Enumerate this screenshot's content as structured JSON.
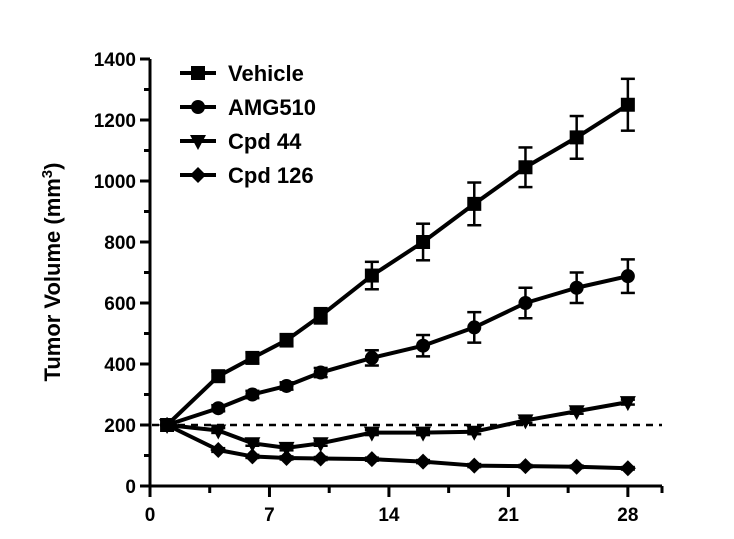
{
  "chart_data": {
    "type": "line",
    "title": "",
    "xlabel": "",
    "ylabel": "Tumor Volume (mm",
    "ylabel_superscript": "3",
    "ylabel_close": ")",
    "xlim": [
      0,
      30
    ],
    "ylim": [
      0,
      1400
    ],
    "xticks": [
      "0",
      "7",
      "14",
      "21",
      "28"
    ],
    "yticks": [
      "0",
      "200",
      "400",
      "600",
      "800",
      "1000",
      "1200",
      "1400"
    ],
    "reference_line": {
      "y": 200,
      "style": "dashed"
    },
    "legend_position": "top-left",
    "grid": false,
    "series": [
      {
        "name": "Vehicle",
        "marker": "square",
        "x": [
          1,
          4,
          6,
          8,
          10,
          13,
          16,
          19,
          22,
          25,
          28
        ],
        "values": [
          200,
          360,
          420,
          478,
          558,
          690,
          800,
          925,
          1045,
          1143,
          1250
        ],
        "errors": [
          0,
          15,
          18,
          20,
          25,
          45,
          60,
          70,
          65,
          70,
          85
        ]
      },
      {
        "name": "AMG510",
        "marker": "circle",
        "x": [
          1,
          4,
          6,
          8,
          10,
          13,
          16,
          19,
          22,
          25,
          28
        ],
        "values": [
          200,
          255,
          300,
          328,
          372,
          420,
          460,
          520,
          600,
          650,
          688
        ],
        "errors": [
          0,
          10,
          12,
          12,
          15,
          25,
          35,
          50,
          50,
          50,
          55
        ]
      },
      {
        "name": "Cpd 44",
        "marker": "triangle-down",
        "x": [
          1,
          4,
          6,
          8,
          10,
          13,
          16,
          19,
          22,
          25,
          28
        ],
        "values": [
          200,
          182,
          140,
          125,
          140,
          175,
          175,
          178,
          215,
          245,
          275
        ],
        "errors": [
          0,
          8,
          8,
          8,
          8,
          8,
          8,
          8,
          8,
          8,
          8
        ]
      },
      {
        "name": "Cpd 126",
        "marker": "diamond",
        "x": [
          1,
          4,
          6,
          8,
          10,
          13,
          16,
          19,
          22,
          25,
          28
        ],
        "values": [
          200,
          118,
          97,
          92,
          90,
          88,
          80,
          67,
          65,
          63,
          58
        ],
        "errors": [
          0,
          6,
          5,
          5,
          5,
          5,
          5,
          5,
          4,
          4,
          4
        ]
      }
    ]
  }
}
